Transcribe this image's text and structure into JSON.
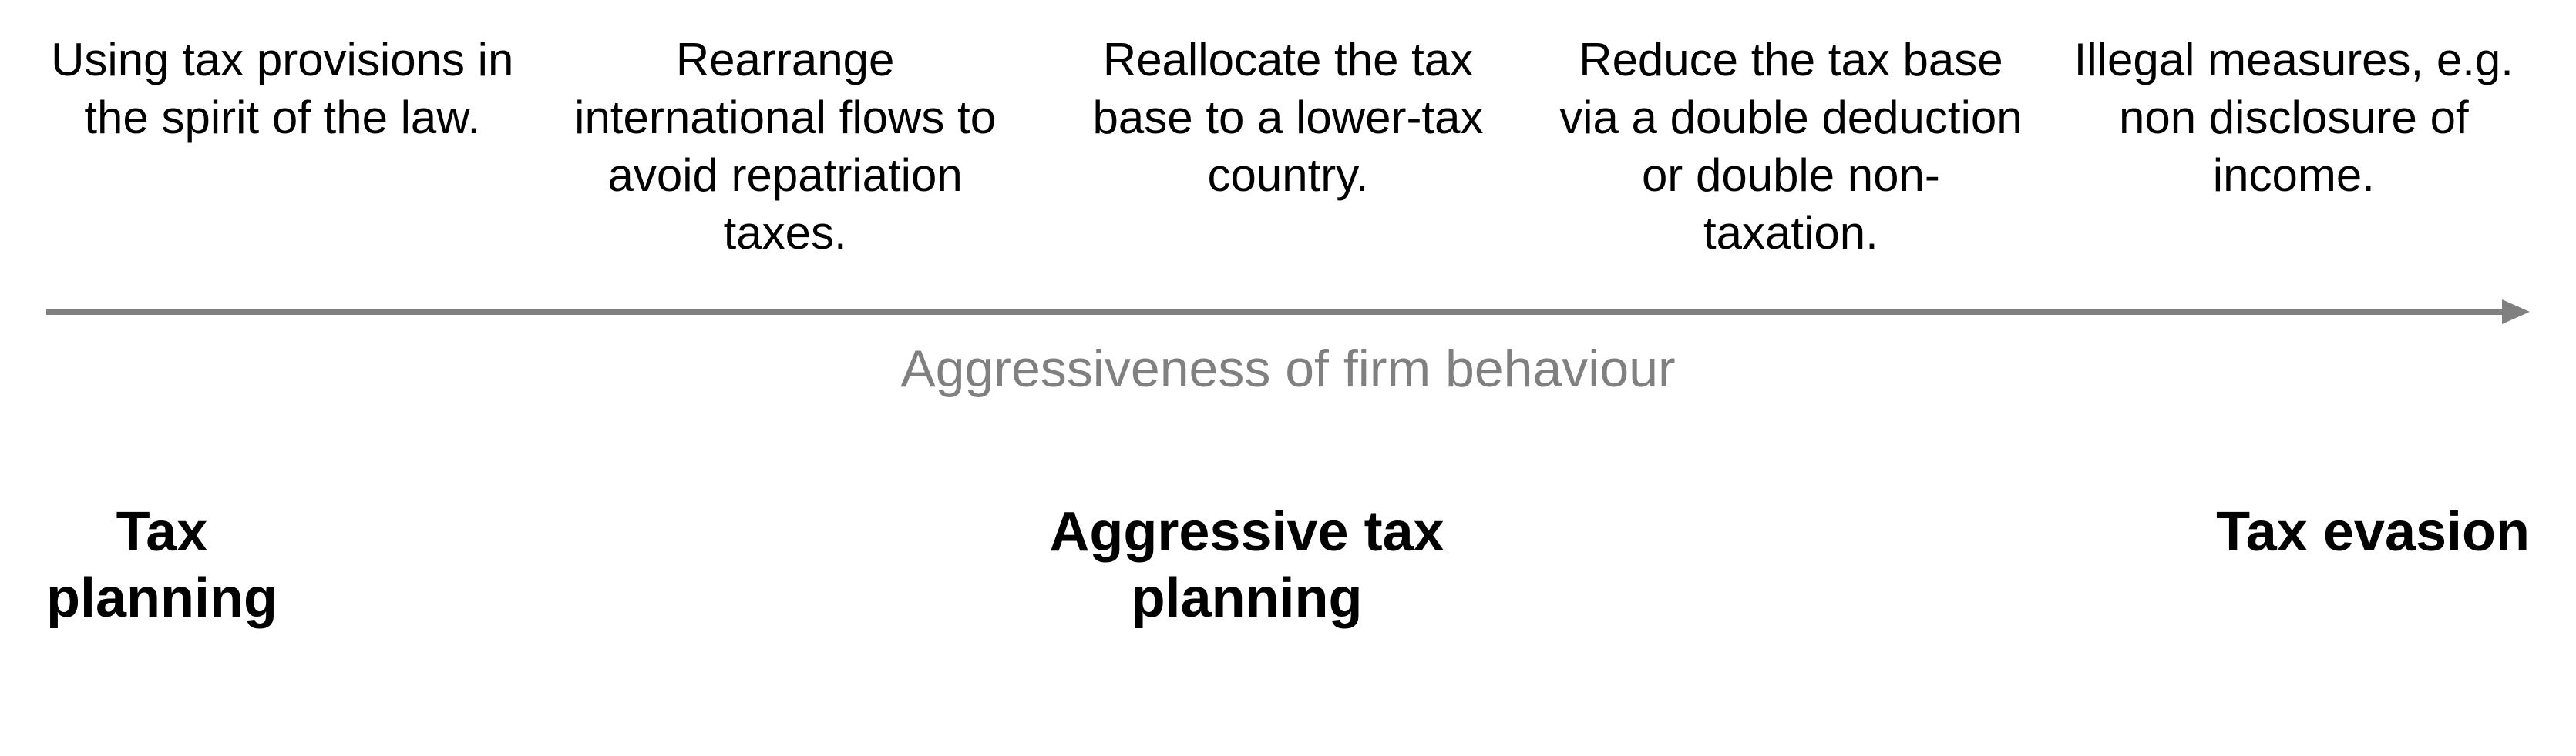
{
  "diagram": {
    "type": "spectrum",
    "axis_label": "Aggressiveness of firm behaviour",
    "axis_label_color": "#808080",
    "axis_label_fontsize": 68,
    "arrow_color": "#808080",
    "arrow_thickness": 8,
    "background_color": "#ffffff",
    "top_items": [
      "Using tax provisions in the spirit of the law.",
      "Rearrange international flows to avoid repatriation taxes.",
      "Reallocate the tax base to a lower-tax country.",
      "Reduce the tax base via a double deduction or double non-taxation.",
      "Illegal measures, e.g. non disclosure of income."
    ],
    "top_item_fontsize": 60,
    "top_item_color": "#000000",
    "categories": [
      {
        "label": "Tax\nplanning"
      },
      {
        "label": "Aggressive tax\nplanning"
      },
      {
        "label": "Tax evasion"
      }
    ],
    "category_fontsize": 72,
    "category_fontweight": 700,
    "category_color": "#000000"
  }
}
